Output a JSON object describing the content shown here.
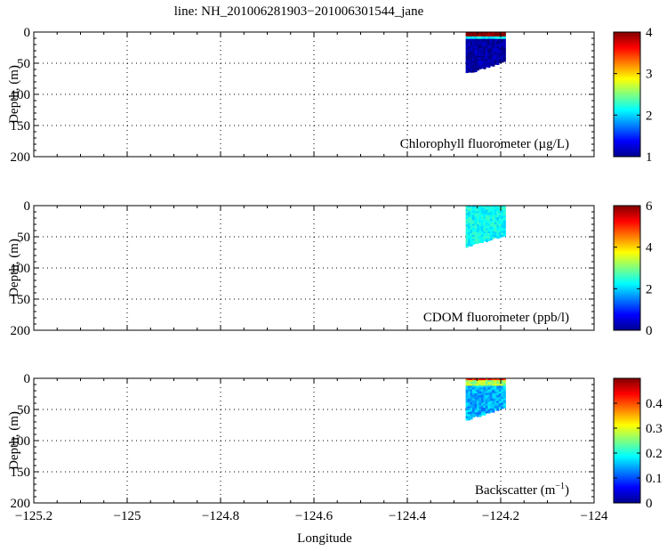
{
  "figure": {
    "title": "line: NH_201006281903−201006301544_jane",
    "xlabel": "Longitude"
  },
  "chart_data": [
    {
      "type": "heatmap",
      "name": "chlorophyll",
      "annotation_pre": "Chlorophyll fluorometer (µg/L)",
      "annotation_sup": "",
      "annotation_post": "",
      "ylabel": "Depth, (m)",
      "xlim": [
        -125.2,
        -124.0
      ],
      "ylim": [
        200,
        0
      ],
      "x_ticks": [
        -125.2,
        -125.0,
        -124.8,
        -124.6,
        -124.4,
        -124.2,
        -124.0
      ],
      "x_tick_labels": [
        "−125.2",
        "−125",
        "−124.8",
        "−124.6",
        "−124.4",
        "−124.2",
        "−124"
      ],
      "show_x_tick_labels": false,
      "y_ticks": [
        0,
        50,
        100,
        150,
        200
      ],
      "y_tick_labels": [
        "0",
        "50",
        "100",
        "150",
        "200"
      ],
      "grid": true,
      "colorbar": {
        "vmin": 1,
        "vmax": 4,
        "ticks": [
          1,
          2,
          3,
          4
        ],
        "tick_labels": [
          "1",
          "2",
          "3",
          "4"
        ],
        "colormap": "jet"
      },
      "data_extent": {
        "lon_min": -124.275,
        "lon_max": -124.19,
        "depth_max_west": 67,
        "depth_max_east": 47
      },
      "layers": [
        {
          "depth_top": 0,
          "depth_bottom": 7,
          "value": 4.0
        },
        {
          "depth_top": 7,
          "depth_bottom": 11,
          "value": 2.1
        },
        {
          "depth_top": 11,
          "depth_bottom": 200,
          "value": 1.1
        }
      ],
      "noise": 0.15
    },
    {
      "type": "heatmap",
      "name": "cdom",
      "annotation_pre": "CDOM fluorometer (ppb/l)",
      "annotation_sup": "",
      "annotation_post": "",
      "ylabel": "Depth, (m)",
      "xlim": [
        -125.2,
        -124.0
      ],
      "ylim": [
        200,
        0
      ],
      "x_ticks": [
        -125.2,
        -125.0,
        -124.8,
        -124.6,
        -124.4,
        -124.2,
        -124.0
      ],
      "x_tick_labels": [
        "−125.2",
        "−125",
        "−124.8",
        "−124.6",
        "−124.4",
        "−124.2",
        "−124"
      ],
      "show_x_tick_labels": false,
      "y_ticks": [
        0,
        50,
        100,
        150,
        200
      ],
      "y_tick_labels": [
        "0",
        "50",
        "100",
        "150",
        "200"
      ],
      "grid": true,
      "colorbar": {
        "vmin": 0,
        "vmax": 6,
        "ticks": [
          0,
          2,
          4,
          6
        ],
        "tick_labels": [
          "0",
          "2",
          "4",
          "6"
        ],
        "colormap": "jet"
      },
      "data_extent": {
        "lon_min": -124.275,
        "lon_max": -124.19,
        "depth_max_west": 67,
        "depth_max_east": 47
      },
      "layers": [
        {
          "depth_top": 0,
          "depth_bottom": 200,
          "value": 2.3
        }
      ],
      "noise": 0.35
    },
    {
      "type": "heatmap",
      "name": "backscatter",
      "annotation_pre": "Backscatter (m",
      "annotation_sup": "−1",
      "annotation_post": ")",
      "ylabel": "Depth, (m)",
      "xlabel": "Longitude",
      "xlim": [
        -125.2,
        -124.0
      ],
      "ylim": [
        200,
        0
      ],
      "x_ticks": [
        -125.2,
        -125.0,
        -124.8,
        -124.6,
        -124.4,
        -124.2,
        -124.0
      ],
      "x_tick_labels": [
        "−125.2",
        "−125",
        "−124.8",
        "−124.6",
        "−124.4",
        "−124.2",
        "−124"
      ],
      "show_x_tick_labels": true,
      "y_ticks": [
        0,
        50,
        100,
        150,
        200
      ],
      "y_tick_labels": [
        "0",
        "50",
        "100",
        "150",
        "200"
      ],
      "grid": true,
      "colorbar": {
        "vmin": 0,
        "vmax": 0.5,
        "ticks": [
          0,
          0.1,
          0.2,
          0.3,
          0.4
        ],
        "tick_labels": [
          "0",
          "0.1",
          "0.2",
          "0.3",
          "0.4"
        ],
        "colormap": "jet"
      },
      "data_extent": {
        "lon_min": -124.275,
        "lon_max": -124.19,
        "depth_max_west": 67,
        "depth_max_east": 47
      },
      "layers": [
        {
          "depth_top": 0,
          "depth_bottom": 3,
          "value": 0.42
        },
        {
          "depth_top": 3,
          "depth_bottom": 12,
          "value": 0.27
        },
        {
          "depth_top": 12,
          "depth_bottom": 200,
          "value": 0.15
        }
      ],
      "noise": 0.035
    }
  ]
}
